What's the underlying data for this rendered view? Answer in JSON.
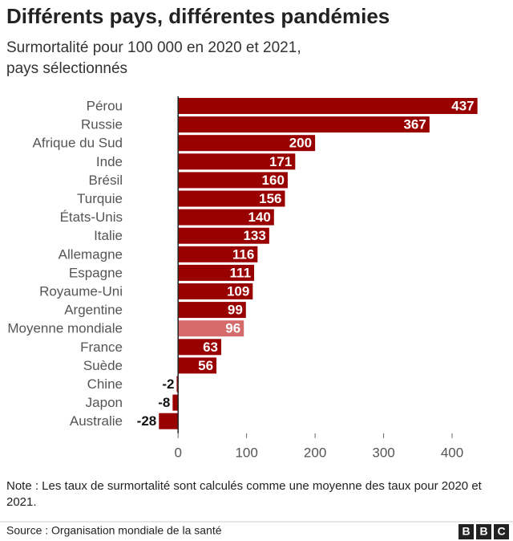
{
  "chart_data": {
    "type": "bar",
    "title": "Différents pays, différentes pandémies",
    "subtitle": [
      "Surmortalité pour 100 000 en 2020 et 2021,",
      "pays sélectionnés"
    ],
    "categories": [
      "Pérou",
      "Russie",
      "Afrique du Sud",
      "Inde",
      "Brésil",
      "Turquie",
      "États-Unis",
      "Italie",
      "Allemagne",
      "Espagne",
      "Royaume-Uni",
      "Argentine",
      "Moyenne mondiale",
      "France",
      "Suède",
      "Chine",
      "Japon",
      "Australie"
    ],
    "values": [
      437,
      367,
      200,
      171,
      160,
      156,
      140,
      133,
      116,
      111,
      109,
      99,
      96,
      63,
      56,
      -2,
      -8,
      -28
    ],
    "colors": [
      "#990000",
      "#990000",
      "#990000",
      "#990000",
      "#990000",
      "#990000",
      "#990000",
      "#990000",
      "#990000",
      "#990000",
      "#990000",
      "#990000",
      "#d46a6a",
      "#990000",
      "#990000",
      "#990000",
      "#990000",
      "#990000"
    ],
    "xlim": [
      -40,
      450
    ],
    "xticks": [
      0,
      100,
      200,
      300,
      400
    ],
    "note": "Note : Les taux de surmortalité sont calculés comme une moyenne des taux pour 2020 et 2021.",
    "source": "Source : Organisation mondiale de la santé",
    "logo": [
      "B",
      "B",
      "C"
    ]
  }
}
